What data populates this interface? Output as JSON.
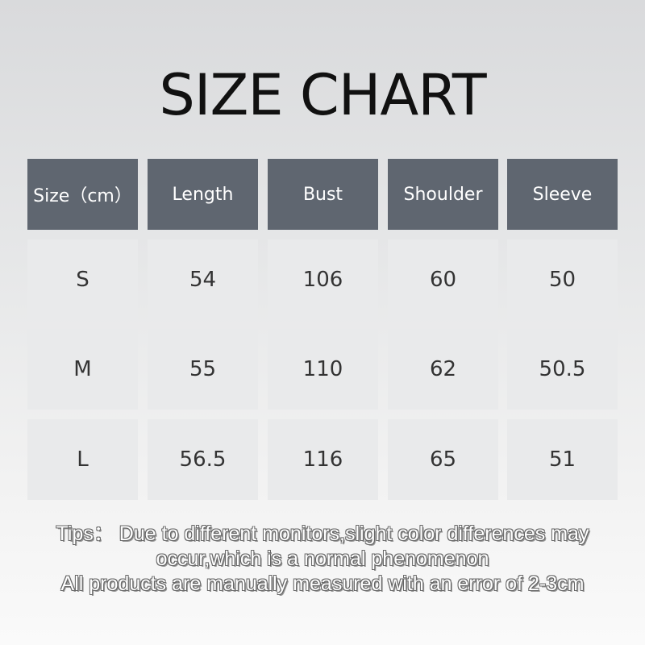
{
  "title": "SIZE CHART",
  "table": {
    "headers": [
      "Size（cm）",
      "Length",
      "Bust",
      "Shoulder",
      "Sleeve"
    ],
    "rows": [
      [
        "S",
        "54",
        "106",
        "60",
        "50"
      ],
      [
        "M",
        "55",
        "110",
        "62",
        "50.5"
      ],
      [
        "L",
        "56.5",
        "116",
        "65",
        "51"
      ]
    ]
  },
  "tips": [
    "Tips：  Due to different monitors,slight color differences may",
    "occur,which is a normal phenomenon",
    "All products are manually measured with an error of 2-3cm"
  ],
  "colors": {
    "header_bg": "#5f6670",
    "cell_bg": "#e9eaeb"
  }
}
